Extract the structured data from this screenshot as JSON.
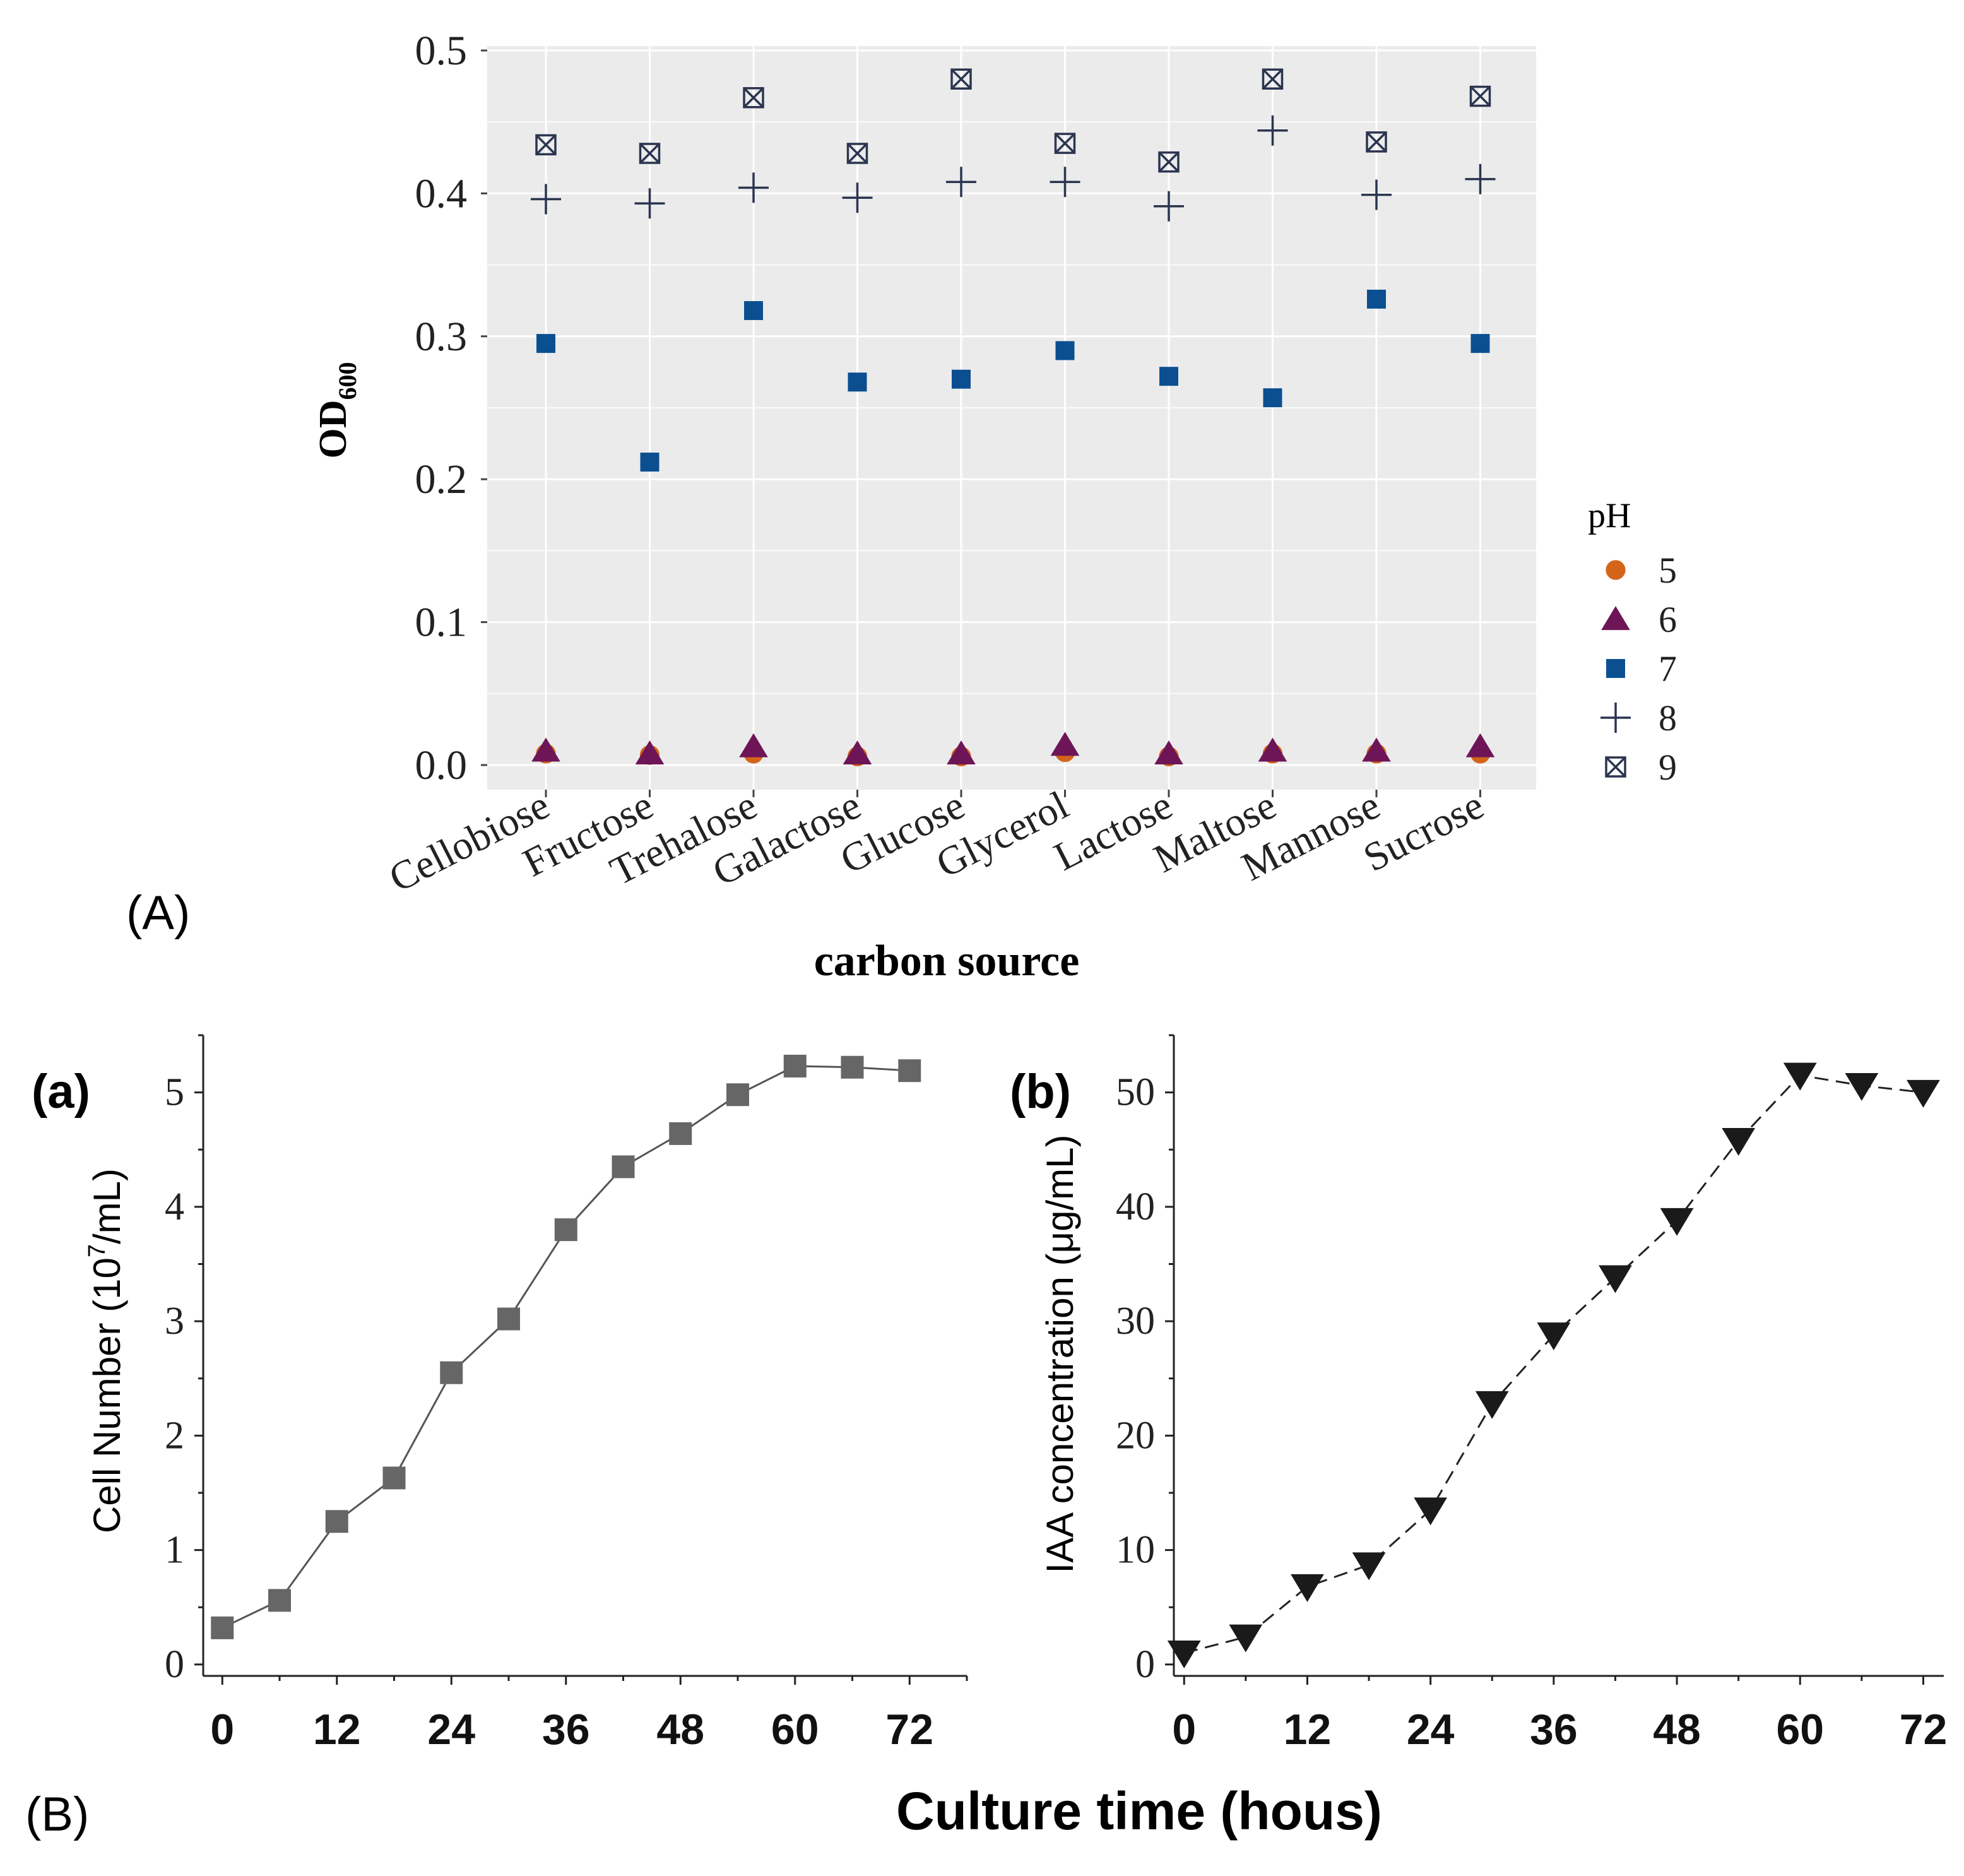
{
  "panel_labels": {
    "A": "(A)",
    "B": "(B)",
    "a": "(a)",
    "b": "(b)"
  },
  "colors": {
    "ph5": "#d4641a",
    "ph6": "#6e1557",
    "ph7": "#0b4f91",
    "ph8": "#2b3550",
    "ph9": "#2b3550",
    "panelA_bg": "#ebebeb",
    "grid": "#ffffff",
    "line_gray": "#555555",
    "marker_gray": "#666666",
    "marker_black": "#1a1a1a"
  },
  "chart_data": [
    {
      "id": "A",
      "type": "scatter",
      "title": "",
      "xlabel": "carbon source",
      "ylabel": "OD",
      "ylabel_subscript": "600",
      "ylim": [
        0,
        0.5
      ],
      "yticks": [
        "0.0",
        "0.1",
        "0.2",
        "0.3",
        "0.4",
        "0.5"
      ],
      "grid": true,
      "legend_title": "pH",
      "legend_position": "right",
      "categories": [
        "Cellobiose",
        "Fructose",
        "Trehalose",
        "Galactose",
        "Glucose",
        "Glycerol",
        "Lactose",
        "Maltose",
        "Mannose",
        "Sucrose"
      ],
      "series": [
        {
          "name": "5",
          "marker": "circle",
          "values": [
            0.008,
            0.007,
            0.008,
            0.006,
            0.006,
            0.009,
            0.006,
            0.008,
            0.008,
            0.008
          ]
        },
        {
          "name": "6",
          "marker": "triangle",
          "values": [
            0.01,
            0.008,
            0.013,
            0.008,
            0.008,
            0.014,
            0.008,
            0.01,
            0.01,
            0.013
          ]
        },
        {
          "name": "7",
          "marker": "square",
          "values": [
            0.295,
            0.212,
            0.318,
            0.268,
            0.27,
            0.29,
            0.272,
            0.257,
            0.326,
            0.295
          ]
        },
        {
          "name": "8",
          "marker": "plus",
          "values": [
            0.396,
            0.393,
            0.404,
            0.397,
            0.408,
            0.408,
            0.391,
            0.444,
            0.399,
            0.41
          ]
        },
        {
          "name": "9",
          "marker": "boxcross",
          "values": [
            0.434,
            0.428,
            0.467,
            0.428,
            0.48,
            0.435,
            0.422,
            0.48,
            0.436,
            0.468
          ]
        }
      ]
    },
    {
      "id": "a",
      "type": "line",
      "ylabel": "Cell Number (10",
      "ylabel_sup": "7",
      "ylabel_end": "/mL)",
      "xlim": [
        -2,
        78
      ],
      "ylim": [
        -0.1,
        5.5
      ],
      "xticks": [
        0,
        12,
        24,
        36,
        48,
        60,
        72
      ],
      "xtick_labels": [
        "0",
        "12",
        "24",
        "36",
        "48",
        "60",
        "72"
      ],
      "yticks": [
        0,
        1,
        2,
        3,
        4,
        5
      ],
      "ytick_labels": [
        "0",
        "1",
        "2",
        "3",
        "4",
        "5"
      ],
      "series": [
        {
          "name": "Cell Number",
          "marker": "square",
          "x": [
            0,
            6,
            12,
            18,
            24,
            30,
            36,
            42,
            48,
            54,
            60,
            66,
            72
          ],
          "y": [
            0.32,
            0.56,
            1.25,
            1.63,
            2.55,
            3.02,
            3.8,
            4.35,
            4.64,
            4.98,
            5.23,
            5.22,
            5.19
          ]
        }
      ]
    },
    {
      "id": "b",
      "type": "line",
      "ylabel": "IAA concentration (μg/mL)",
      "xlim": [
        -1,
        74
      ],
      "ylim": [
        -1,
        55
      ],
      "xticks": [
        0,
        12,
        24,
        36,
        48,
        60,
        72
      ],
      "xtick_labels": [
        "0",
        "12",
        "24",
        "36",
        "48",
        "60",
        "72"
      ],
      "yticks": [
        0,
        10,
        20,
        30,
        40,
        50
      ],
      "ytick_labels": [
        "0",
        "10",
        "20",
        "30",
        "40",
        "50"
      ],
      "series": [
        {
          "name": "IAA concentration",
          "marker": "triangle-down",
          "x": [
            0,
            6,
            12,
            18,
            24,
            30,
            36,
            42,
            48,
            54,
            60,
            66,
            72
          ],
          "y": [
            1,
            2.4,
            6.8,
            8.7,
            13.5,
            22.8,
            28.8,
            33.8,
            38.8,
            45.8,
            51.5,
            50.6,
            50
          ]
        }
      ]
    }
  ],
  "shared_xlabel": "Culture time (hous)"
}
